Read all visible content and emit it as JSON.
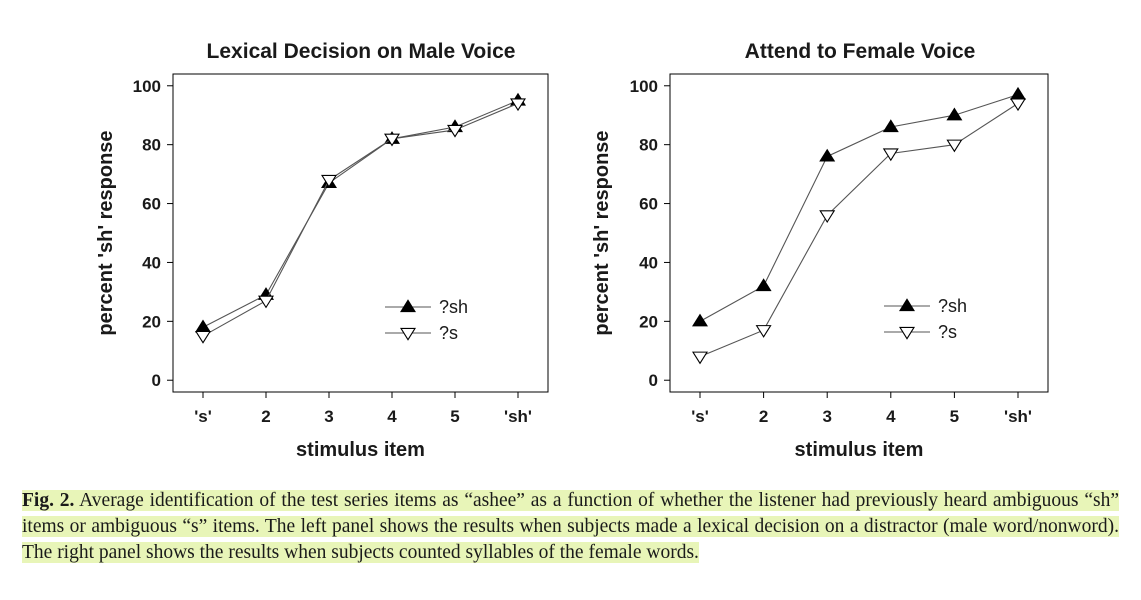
{
  "colors": {
    "series_line": "#555555",
    "marker_fill": "#000000",
    "marker_open": "#ffffff",
    "caption_highlight": "#e8f5b8"
  },
  "chart_data": [
    {
      "type": "line",
      "title": "Lexical Decision on Male Voice",
      "xlabel": "stimulus item",
      "ylabel": "percent 'sh' response",
      "categories": [
        "'s'",
        "2",
        "3",
        "4",
        "5",
        "'sh'"
      ],
      "yticks": [
        "0",
        "20",
        "40",
        "60",
        "80",
        "100"
      ],
      "ylim": [
        -4,
        104
      ],
      "grid": false,
      "legend_position": "lower-right",
      "series": [
        {
          "name": "?sh",
          "marker": "filled-triangle-up",
          "values": [
            18,
            29,
            67,
            82,
            86,
            95
          ]
        },
        {
          "name": "?s",
          "marker": "open-triangle-down",
          "values": [
            15,
            27,
            68,
            82,
            85,
            94
          ]
        }
      ]
    },
    {
      "type": "line",
      "title": "Attend to Female Voice",
      "xlabel": "stimulus item",
      "ylabel": "percent 'sh' response",
      "categories": [
        "'s'",
        "2",
        "3",
        "4",
        "5",
        "'sh'"
      ],
      "yticks": [
        "0",
        "20",
        "40",
        "60",
        "80",
        "100"
      ],
      "ylim": [
        -4,
        104
      ],
      "grid": false,
      "legend_position": "lower-right",
      "series": [
        {
          "name": "?sh",
          "marker": "filled-triangle-up",
          "values": [
            20,
            32,
            76,
            86,
            90,
            97
          ]
        },
        {
          "name": "?s",
          "marker": "open-triangle-down",
          "values": [
            8,
            17,
            56,
            77,
            80,
            94
          ]
        }
      ]
    }
  ],
  "caption": {
    "label": "Fig. 2.",
    "text": " Average identification of the test series items as “ashee” as a function of whether the listener had previously heard ambiguous “sh” items or ambiguous “s” items. The left panel shows the results when subjects made a lexical decision on a distractor (male word/nonword). The right panel shows the results when subjects counted syllables of the female words."
  }
}
